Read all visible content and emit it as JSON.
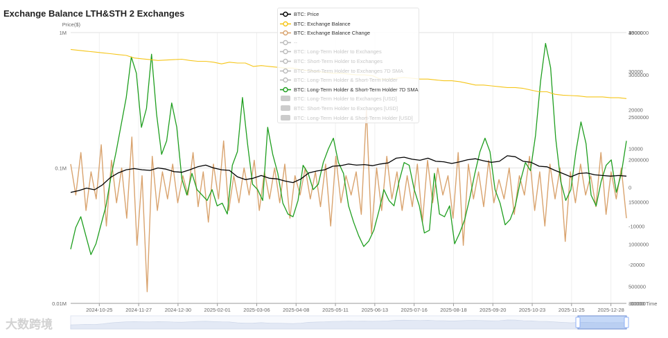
{
  "title": "Exchange Balance LTH&STH 2 Exchanges",
  "watermark": "大数跨境",
  "chart_data": {
    "type": "line",
    "title": "Exchange Balance LTH&STH 2 Exchanges",
    "xlabel": "Time",
    "x_ticks": [
      "2024-10-25",
      "2024-11-27",
      "2024-12-30",
      "2025-02-01",
      "2025-03-06",
      "2025-04-08",
      "2025-05-11",
      "2025-06-13",
      "2025-07-16",
      "2025-08-18",
      "2025-09-20",
      "2025-10-23",
      "2025-11-25",
      "2025-12-28"
    ],
    "x_range": [
      "2024-10-01",
      "2026-01-10"
    ],
    "axes": {
      "price": {
        "label": "Price($)",
        "scale": "log",
        "range": [
          10000,
          1000000
        ],
        "ticks": [
          "1M",
          "0.1M",
          "0.01M"
        ]
      },
      "balance": {
        "scale": "linear",
        "range": [
          300000,
          3500000
        ],
        "ticks": [
          "3500000",
          "3000000",
          "2500000",
          "2000000",
          "1500000",
          "1000000",
          "500000",
          "300000"
        ]
      },
      "change": {
        "scale": "linear",
        "range": [
          -30000,
          40000
        ],
        "ticks": [
          "40000",
          "30000",
          "20000",
          "10000",
          "0",
          "-10000",
          "-20000",
          "-30000"
        ]
      },
      "flow": {
        "scale": "linear",
        "range": [
          0,
          10000
        ],
        "ticks": [
          "10000"
        ]
      }
    },
    "legend": [
      {
        "name": "BTC: Price",
        "color": "#000000",
        "visible": true
      },
      {
        "name": "BTC: Exchange Balance",
        "color": "#f5c518",
        "visible": true
      },
      {
        "name": "BTC: Exchange Balance Change",
        "color": "#d9a36e",
        "visible": true
      },
      {
        "name": "--",
        "color": "#bbbbbb",
        "visible": false
      },
      {
        "name": "BTC: Long-Term Holder to Exchanges",
        "color": "#bbbbbb",
        "visible": false
      },
      {
        "name": "BTC: Short-Term Holder to Exchanges",
        "color": "#bbbbbb",
        "visible": false
      },
      {
        "name": "BTC: Short-Term Holder to Exchanges 7D SMA",
        "color": "#bbbbbb",
        "visible": false
      },
      {
        "name": "BTC: Long-Term Holder & Short-Term Holder",
        "color": "#bbbbbb",
        "visible": false
      },
      {
        "name": "BTC: Long-Term Holder & Short-Term Holder 7D SMA",
        "color": "#1e9e1e",
        "visible": true
      },
      {
        "name": "BTC: Long-Term Holder to Exchanges [USD]",
        "color": "#bbbbbb",
        "visible": false,
        "bar": true
      },
      {
        "name": "BTC: Short-Term Holder to Exchanges [USD]",
        "color": "#bbbbbb",
        "visible": false,
        "bar": true
      },
      {
        "name": "BTC: Long-Term Holder & Short-Term Holder [USD]",
        "color": "#bbbbbb",
        "visible": false,
        "bar": true
      }
    ],
    "series": [
      {
        "name": "BTC: Price",
        "axis": "price",
        "color": "#000000",
        "values": [
          66000,
          68000,
          71000,
          69000,
          75000,
          85000,
          92000,
          97000,
          99000,
          97000,
          96000,
          100000,
          98000,
          94000,
          93000,
          97000,
          102000,
          105000,
          100000,
          97000,
          96000,
          86000,
          82000,
          84000,
          88000,
          84000,
          83000,
          80000,
          78000,
          83000,
          92000,
          95000,
          97000,
          103000,
          104000,
          107000,
          105000,
          106000,
          104000,
          107000,
          109000,
          118000,
          120000,
          116000,
          114000,
          118000,
          112000,
          111000,
          108000,
          111000,
          115000,
          117000,
          113000,
          110000,
          112000,
          123000,
          121000,
          112000,
          110000,
          103000,
          102000,
          96000,
          91000,
          86000,
          91000,
          92000,
          89000,
          88000,
          87000,
          88000,
          87000
        ]
      },
      {
        "name": "BTC: Exchange Balance",
        "axis": "balance",
        "color": "#f5c518",
        "values": [
          3300000,
          3290000,
          3280000,
          3270000,
          3260000,
          3250000,
          3240000,
          3230000,
          3200000,
          3190000,
          3180000,
          3170000,
          3175000,
          3180000,
          3185000,
          3170000,
          3160000,
          3160000,
          3150000,
          3130000,
          3150000,
          3140000,
          3140000,
          3100000,
          3110000,
          3100000,
          3090000,
          3080000,
          3080000,
          3060000,
          3050000,
          3040000,
          3030000,
          3020000,
          3020000,
          3010000,
          3000000,
          3000000,
          2990000,
          2950000,
          2950000,
          2960000,
          2970000,
          2960000,
          2950000,
          2950000,
          2940000,
          2930000,
          2930000,
          2920000,
          2900000,
          2880000,
          2880000,
          2870000,
          2860000,
          2850000,
          2850000,
          2840000,
          2820000,
          2800000,
          2800000,
          2770000,
          2760000,
          2755000,
          2750000,
          2740000,
          2740000,
          2740000,
          2730000,
          2730000,
          2720000
        ]
      },
      {
        "name": "BTC: Exchange Balance Change",
        "axis": "change",
        "color": "#d9a36e",
        "values": [
          6000,
          -2000,
          9000,
          -6000,
          4000,
          -3000,
          11000,
          -10000,
          7000,
          -4000,
          5000,
          -8000,
          13000,
          -15000,
          3000,
          -27000,
          8000,
          -6000,
          4000,
          -3000,
          6000,
          -4000,
          3000,
          -2000,
          9000,
          -5000,
          4000,
          -9000,
          6000,
          -3000,
          12000,
          -6000,
          3000,
          -4000,
          5000,
          -2000,
          7000,
          -6000,
          4000,
          -3000,
          5000,
          -4000,
          6000,
          -8000,
          3000,
          -2000,
          5000,
          -3000,
          4000,
          -5000,
          6000,
          -10000,
          8000,
          -4000,
          3000,
          -2000,
          4000,
          -7000,
          20000,
          -12000,
          5000,
          -6000,
          8000,
          -3000,
          4000,
          -6000,
          3000,
          -5000,
          6000,
          -9000,
          7000,
          -4000,
          5000,
          -2000,
          3000,
          -8000,
          9000,
          -15000,
          6000,
          -3000,
          4000,
          -5000,
          7000,
          -4000,
          2000,
          -3000,
          5000,
          -7000,
          3000,
          -2000,
          8000,
          -6000,
          4000,
          -10000,
          6000,
          -3000,
          5000,
          -14000,
          4000,
          -4000,
          6000,
          -2000,
          3000,
          -5000,
          9000,
          -7000,
          4000,
          -3000,
          5000,
          -8000
        ]
      },
      {
        "name": "BTC: Long-Term Holder & Short-Term Holder 7D SMA",
        "axis": "flow",
        "color": "#1e9e1e",
        "values": [
          2000,
          2800,
          3200,
          2500,
          1800,
          2200,
          2900,
          3600,
          4700,
          5600,
          6600,
          7600,
          9100,
          8500,
          6500,
          7200,
          9200,
          7000,
          5500,
          6000,
          7400,
          6500,
          4600,
          4000,
          4800,
          4200,
          4000,
          3800,
          4200,
          3600,
          3700,
          3300,
          5100,
          5600,
          7600,
          5900,
          4400,
          4200,
          3800,
          6500,
          5500,
          4800,
          3700,
          3300,
          3200,
          3800,
          5100,
          4800,
          4200,
          4400,
          5200,
          5700,
          6100,
          5200,
          4800,
          3600,
          3000,
          2500,
          2100,
          2300,
          2700,
          3400,
          4200,
          3800,
          3600,
          4500,
          5200,
          5100,
          4200,
          3600,
          2600,
          2700,
          4800,
          3300,
          3200,
          3600,
          2200,
          2600,
          3100,
          3900,
          4800,
          5600,
          6100,
          5600,
          4200,
          3700,
          2900,
          3100,
          3600,
          4500,
          5200,
          4900,
          6200,
          8200,
          9600,
          8700,
          6100,
          4500,
          3800,
          4200,
          5600,
          6700,
          5900,
          4000,
          3600,
          4500,
          5100,
          5300,
          4100,
          4800,
          6000
        ]
      }
    ]
  }
}
